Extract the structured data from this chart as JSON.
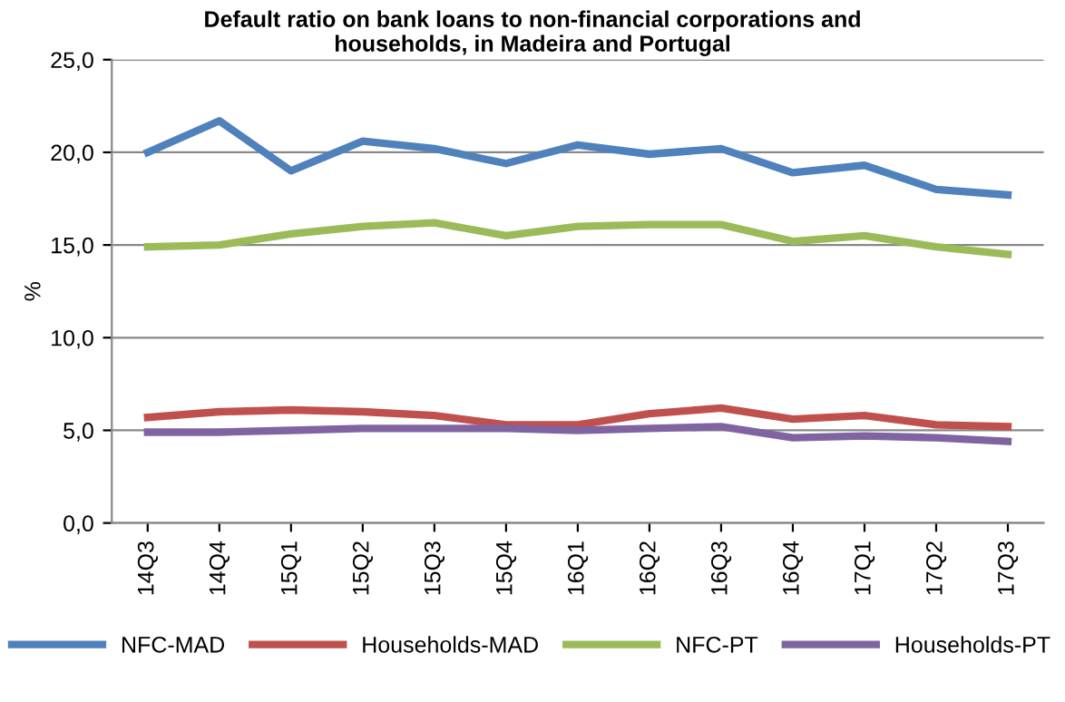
{
  "chart_data": {
    "type": "line",
    "title": "Default ratio on bank loans to non-financial corporations and\nhouseholds, in Madeira and Portugal",
    "ylabel": "%",
    "categories": [
      "14Q3",
      "14Q4",
      "15Q1",
      "15Q2",
      "15Q3",
      "15Q4",
      "16Q1",
      "16Q2",
      "16Q3",
      "16Q4",
      "17Q1",
      "17Q2",
      "17Q3"
    ],
    "series": [
      {
        "name": "NFC-MAD",
        "color": "#4f81bd",
        "values": [
          20.0,
          21.7,
          19.0,
          20.6,
          20.2,
          19.4,
          20.4,
          19.9,
          20.2,
          18.9,
          19.3,
          18.0,
          17.7
        ]
      },
      {
        "name": "Households-MAD",
        "color": "#c0504d",
        "values": [
          5.7,
          6.0,
          6.1,
          6.0,
          5.8,
          5.3,
          5.3,
          5.9,
          6.2,
          5.6,
          5.8,
          5.3,
          5.2
        ]
      },
      {
        "name": "NFC-PT",
        "color": "#9bbb59",
        "values": [
          14.9,
          15.0,
          15.6,
          16.0,
          16.2,
          15.5,
          16.0,
          16.1,
          16.1,
          15.2,
          15.5,
          14.9,
          14.5
        ]
      },
      {
        "name": "Households-PT",
        "color": "#8064a2",
        "values": [
          4.9,
          4.9,
          5.0,
          5.1,
          5.1,
          5.1,
          5.0,
          5.1,
          5.2,
          4.6,
          4.7,
          4.6,
          4.4
        ]
      }
    ],
    "ylim": [
      0,
      25
    ],
    "yticks": [
      {
        "value": 0,
        "label": "0,0"
      },
      {
        "value": 5,
        "label": "5,0"
      },
      {
        "value": 10,
        "label": "10,0"
      },
      {
        "value": 15,
        "label": "15,0"
      },
      {
        "value": 20,
        "label": "20,0"
      },
      {
        "value": 25,
        "label": "25,0"
      }
    ],
    "grid": "y",
    "legend": "bottom",
    "marker": "none",
    "line_style": "solid"
  }
}
